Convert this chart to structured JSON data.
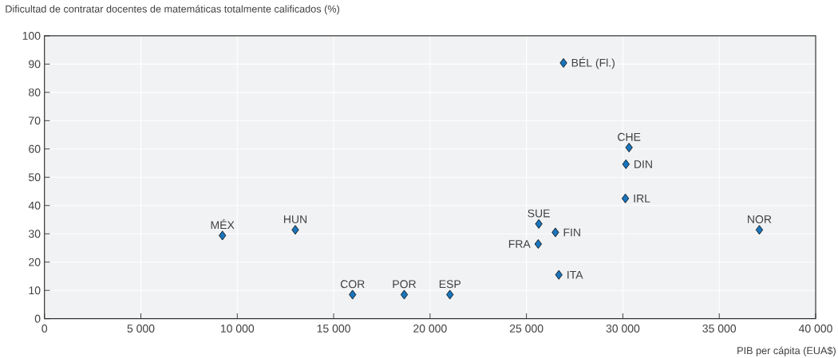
{
  "chart_data": {
    "type": "scatter",
    "ylabel": "Dificultad de contratar docentes de matemáticas totalmente calificados (%)",
    "xlabel": "PIB per cápita (EUA$)",
    "x": [
      9230,
      13010,
      15980,
      18660,
      21030,
      25640,
      26500,
      25610,
      26680,
      26920,
      30320,
      30160,
      30130,
      37080
    ],
    "values": [
      29.4,
      31.4,
      8.5,
      8.5,
      8.5,
      33.5,
      30.5,
      26.4,
      15.5,
      90.4,
      60.5,
      54.6,
      42.5,
      31.4
    ],
    "color": "#1a75bc",
    "marker": "diamond",
    "grid": true,
    "xlim": [
      0,
      40000
    ],
    "ylim": [
      0,
      100
    ],
    "xticks": [
      0,
      {
        "value": 5000,
        "label": "5 000"
      },
      {
        "value": 10000,
        "label": "10 000"
      },
      {
        "value": 15000,
        "label": "15 000"
      },
      {
        "value": 20000,
        "label": "20 000"
      },
      {
        "value": 25000,
        "label": "25 000"
      },
      {
        "value": 30000,
        "label": "30 000"
      },
      {
        "value": 35000,
        "label": "35 000"
      },
      {
        "value": 40000,
        "label": "40 000"
      }
    ],
    "yticks": [
      0,
      10,
      20,
      30,
      40,
      50,
      60,
      70,
      80,
      90,
      100
    ],
    "annotations": [
      {
        "text": "MÉX",
        "x": 9230,
        "y": 29.4
      },
      {
        "text": "HUN",
        "x": 13010,
        "y": 31.4
      },
      {
        "text": "COR",
        "x": 15980,
        "y": 8.5
      },
      {
        "text": "POR",
        "x": 18660,
        "y": 8.5
      },
      {
        "text": "ESP",
        "x": 21030,
        "y": 8.5
      },
      {
        "text": "SUE",
        "x": 25640,
        "y": 33.5
      },
      {
        "text": "FIN",
        "x": 26500,
        "y": 30.5
      },
      {
        "text": "FRA",
        "x": 25610,
        "y": 26.4
      },
      {
        "text": "ITA",
        "x": 26680,
        "y": 15.5
      },
      {
        "text": "BÉL (Fl.)",
        "x": 26920,
        "y": 90.4
      },
      {
        "text": "CHE",
        "x": 30320,
        "y": 60.5
      },
      {
        "text": "DIN",
        "x": 30160,
        "y": 54.6
      },
      {
        "text": "IRL",
        "x": 30130,
        "y": 42.5
      },
      {
        "text": "NOR",
        "x": 37080,
        "y": 31.4
      }
    ]
  }
}
